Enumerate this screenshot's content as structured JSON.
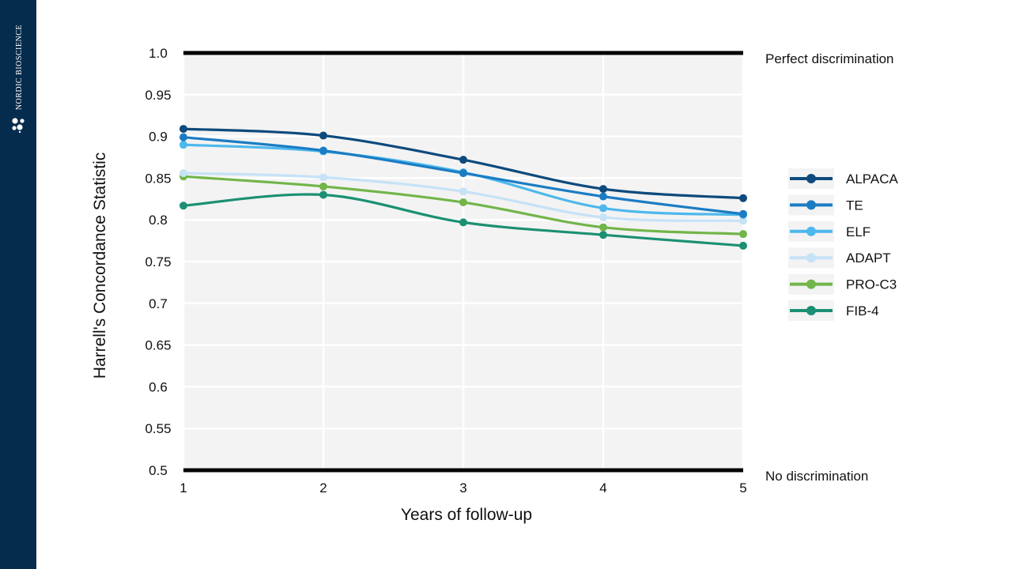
{
  "brand": {
    "name": "NORDIC BIOSCIENCE",
    "icon": "molecule-icon",
    "bar_color": "#062c4d"
  },
  "chart_data": {
    "type": "line",
    "title": "",
    "xlabel": "Years of follow-up",
    "ylabel": "Harrell's Concordance Statistic",
    "x": [
      1,
      2,
      3,
      4,
      5
    ],
    "xlim": [
      1,
      5
    ],
    "ylim": [
      0.5,
      1.0
    ],
    "y_ticks": [
      "0.5",
      "0.55",
      "0.6",
      "0.65",
      "0.7",
      "0.75",
      "0.8",
      "0.85",
      "0.9",
      "0.95",
      "1.0"
    ],
    "x_ticks": [
      "1",
      "2",
      "3",
      "4",
      "5"
    ],
    "grid": true,
    "legend_position": "right",
    "smooth": true,
    "reference_lines": [
      {
        "y": 1.0,
        "label": "Perfect discrimination"
      },
      {
        "y": 0.5,
        "label": "No discrimination"
      }
    ],
    "series": [
      {
        "name": "ALPACA",
        "color": "#0e4a7c",
        "values": [
          0.909,
          0.901,
          0.872,
          0.837,
          0.826
        ]
      },
      {
        "name": "TE",
        "color": "#1b7cc4",
        "values": [
          0.899,
          0.883,
          0.856,
          0.828,
          0.807
        ]
      },
      {
        "name": "ELF",
        "color": "#4db8ec",
        "values": [
          0.89,
          0.882,
          0.857,
          0.814,
          0.806
        ]
      },
      {
        "name": "ADAPT",
        "color": "#c6e2f6",
        "values": [
          0.856,
          0.851,
          0.834,
          0.803,
          0.799
        ]
      },
      {
        "name": "PRO-C3",
        "color": "#72b54a",
        "values": [
          0.852,
          0.84,
          0.821,
          0.791,
          0.783
        ]
      },
      {
        "name": "FIB-4",
        "color": "#1b9073",
        "values": [
          0.817,
          0.83,
          0.797,
          0.782,
          0.769
        ]
      }
    ]
  }
}
